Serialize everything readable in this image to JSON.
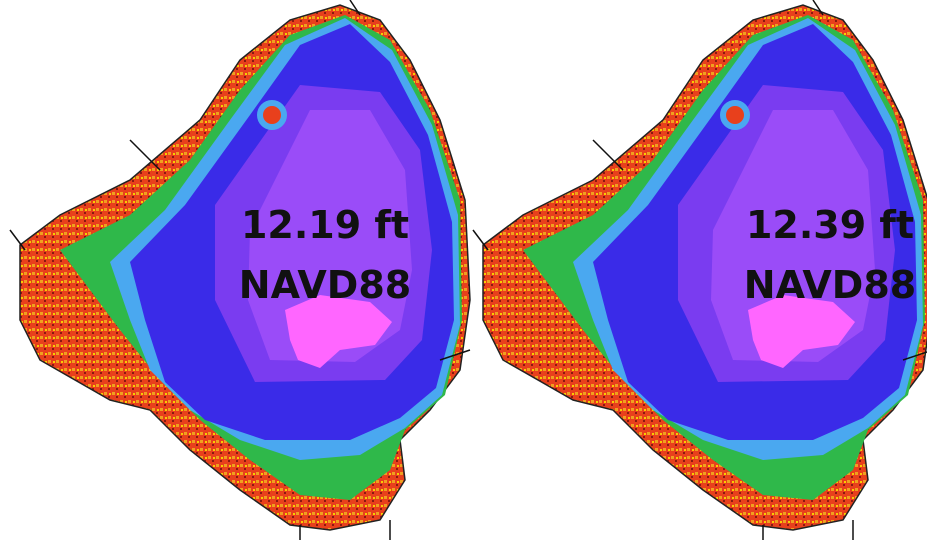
{
  "panels": [
    {
      "stage": "12.19 ft",
      "datum": "NAVD88"
    },
    {
      "stage": "12.39 ft",
      "datum": "NAVD88"
    }
  ]
}
